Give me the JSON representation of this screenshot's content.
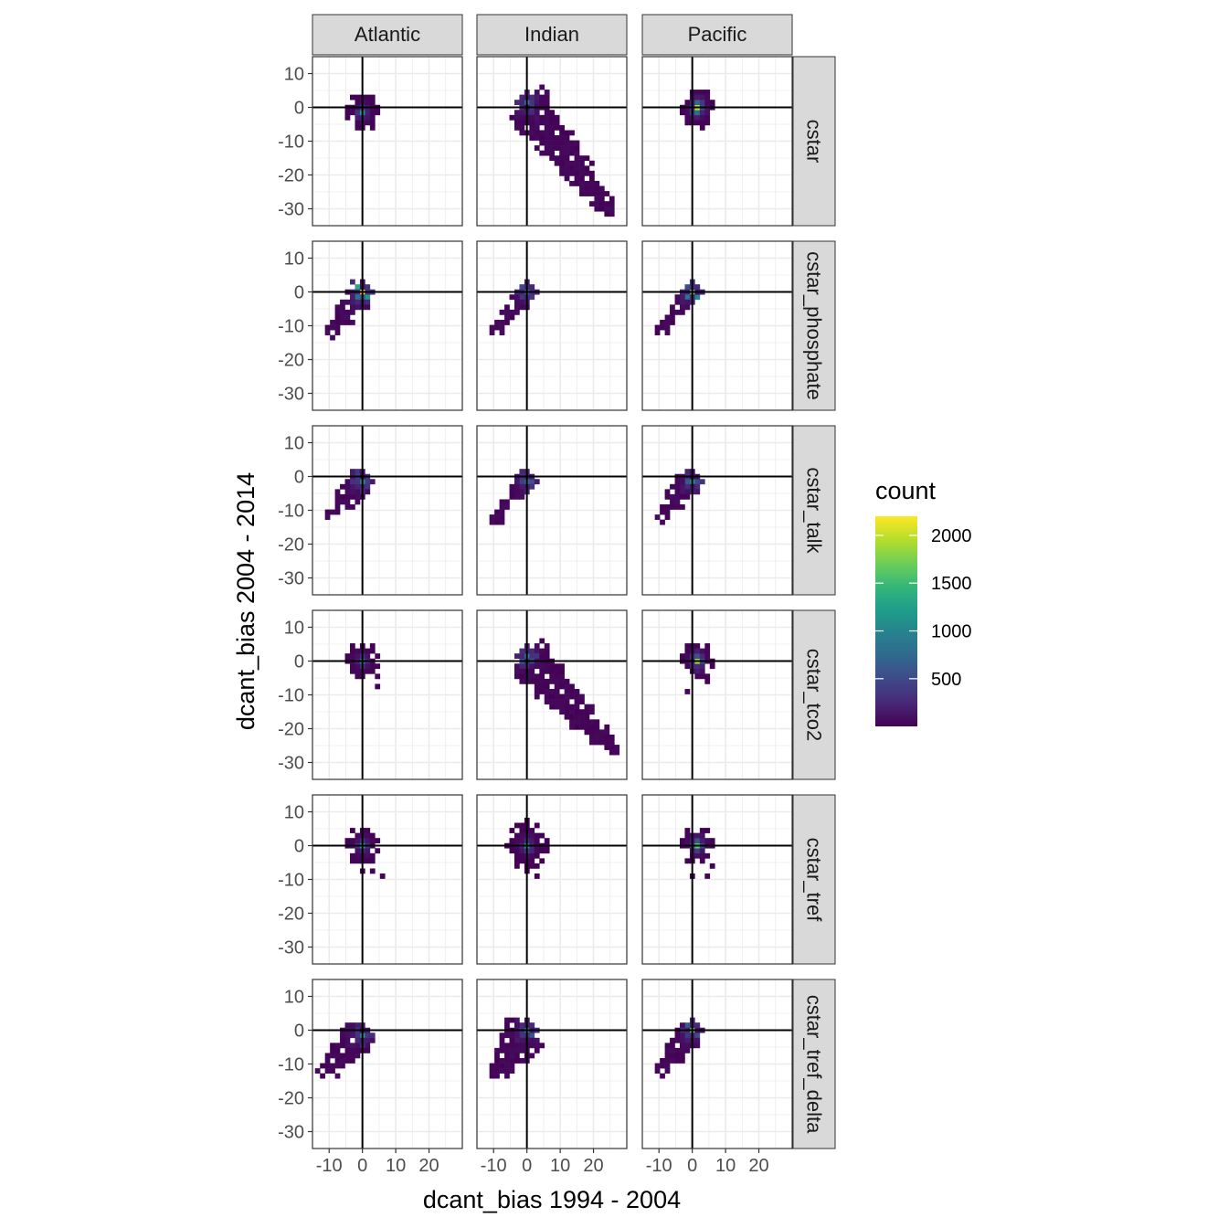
{
  "chart_data": {
    "type": "heatmap",
    "subtype": "faceted 2D bin count (geom_bin2d)",
    "xlabel": "dcant_bias 1994 - 2004",
    "ylabel": "dcant_bias 2004 - 2014",
    "xlim": [
      -15,
      30
    ],
    "ylim": [
      -35,
      15
    ],
    "x_ticks": [
      -10,
      0,
      10,
      20
    ],
    "y_ticks": [
      10,
      0,
      -10,
      -20,
      -30
    ],
    "x_tick_labels": [
      "-10",
      "0",
      "10",
      "20"
    ],
    "y_tick_labels": [
      "10",
      "0",
      "-10",
      "-20",
      "-30"
    ],
    "bin_width": 1.5,
    "reference_lines": {
      "vline": 0,
      "hline": 0
    },
    "grid": true,
    "columns": [
      "Atlantic",
      "Indian",
      "Pacific"
    ],
    "rows": [
      "cstar",
      "cstar_phosphate",
      "cstar_talk",
      "cstar_tco2",
      "cstar_tref",
      "cstar_tref_delta"
    ],
    "legend": {
      "title": "count",
      "position": "right",
      "colormap": "viridis",
      "min": 1,
      "max": 2200,
      "breaks": [
        500,
        1000,
        1500,
        2000
      ],
      "break_labels": [
        "500",
        "1000",
        "1500",
        "2000"
      ]
    },
    "colors": [
      "#440154",
      "#482878",
      "#3e4989",
      "#31688e",
      "#26828e",
      "#1f9e89",
      "#35b779",
      "#6ece58",
      "#b5de2b",
      "#fde725"
    ],
    "panels": [
      {
        "row": "cstar",
        "col": "Atlantic",
        "shape": "blob",
        "peak": [
          0,
          -1
        ],
        "peak_count": 1150,
        "spread": 3
      },
      {
        "row": "cstar",
        "col": "Indian",
        "shape": "diagonal-down",
        "peak": [
          0,
          1
        ],
        "peak_count": 1000,
        "end": [
          25,
          -31
        ],
        "extent": [
          -2,
          5
        ]
      },
      {
        "row": "cstar",
        "col": "Pacific",
        "shape": "blob",
        "peak": [
          1,
          0
        ],
        "peak_count": 2000,
        "spread": 3
      },
      {
        "row": "cstar_phosphate",
        "col": "Atlantic",
        "shape": "diagonal-up",
        "peak": [
          0,
          0
        ],
        "peak_count": 2200,
        "end": [
          -10,
          -12
        ],
        "width": 3
      },
      {
        "row": "cstar_phosphate",
        "col": "Indian",
        "shape": "diagonal-up",
        "peak": [
          0,
          0
        ],
        "peak_count": 900,
        "end": [
          -10,
          -12
        ],
        "width": 2
      },
      {
        "row": "cstar_phosphate",
        "col": "Pacific",
        "shape": "diagonal-up",
        "peak": [
          0,
          0
        ],
        "peak_count": 1700,
        "end": [
          -10,
          -12
        ],
        "width": 2
      },
      {
        "row": "cstar_talk",
        "col": "Atlantic",
        "shape": "diagonal-up",
        "peak": [
          0,
          -1
        ],
        "peak_count": 1100,
        "end": [
          -10,
          -12
        ],
        "width": 3
      },
      {
        "row": "cstar_talk",
        "col": "Indian",
        "shape": "diagonal-up",
        "peak": [
          0,
          -1
        ],
        "peak_count": 800,
        "end": [
          -10,
          -13
        ],
        "width": 2
      },
      {
        "row": "cstar_talk",
        "col": "Pacific",
        "shape": "diagonal-up",
        "peak": [
          0,
          -1
        ],
        "peak_count": 1100,
        "end": [
          -10,
          -12
        ],
        "width": 3
      },
      {
        "row": "cstar_tco2",
        "col": "Atlantic",
        "shape": "blob",
        "peak": [
          0,
          0
        ],
        "peak_count": 900,
        "spread": 3
      },
      {
        "row": "cstar_tco2",
        "col": "Indian",
        "shape": "diagonal-down",
        "peak": [
          0,
          1
        ],
        "peak_count": 1000,
        "end": [
          27,
          -27
        ],
        "extent": [
          -3,
          5
        ]
      },
      {
        "row": "cstar_tco2",
        "col": "Pacific",
        "shape": "blob",
        "peak": [
          1,
          0
        ],
        "peak_count": 1900,
        "spread": 3
      },
      {
        "row": "cstar_tref",
        "col": "Atlantic",
        "shape": "blob",
        "peak": [
          0,
          0
        ],
        "peak_count": 1300,
        "spread": 3
      },
      {
        "row": "cstar_tref",
        "col": "Indian",
        "shape": "blob",
        "peak": [
          0,
          0
        ],
        "peak_count": 1200,
        "spread": 4
      },
      {
        "row": "cstar_tref",
        "col": "Pacific",
        "shape": "blob",
        "peak": [
          1,
          0
        ],
        "peak_count": 1600,
        "spread": 3
      },
      {
        "row": "cstar_tref_delta",
        "col": "Atlantic",
        "shape": "diagonal-up",
        "peak": [
          0,
          -1
        ],
        "peak_count": 1200,
        "end": [
          -12,
          -13
        ],
        "width": 4
      },
      {
        "row": "cstar_tref_delta",
        "col": "Indian",
        "shape": "diagonal-up",
        "peak": [
          0,
          0
        ],
        "peak_count": 1100,
        "end": [
          -10,
          -14
        ],
        "width": 5
      },
      {
        "row": "cstar_tref_delta",
        "col": "Pacific",
        "shape": "diagonal-up",
        "peak": [
          0,
          0
        ],
        "peak_count": 1700,
        "end": [
          -10,
          -12
        ],
        "width": 3
      }
    ]
  }
}
